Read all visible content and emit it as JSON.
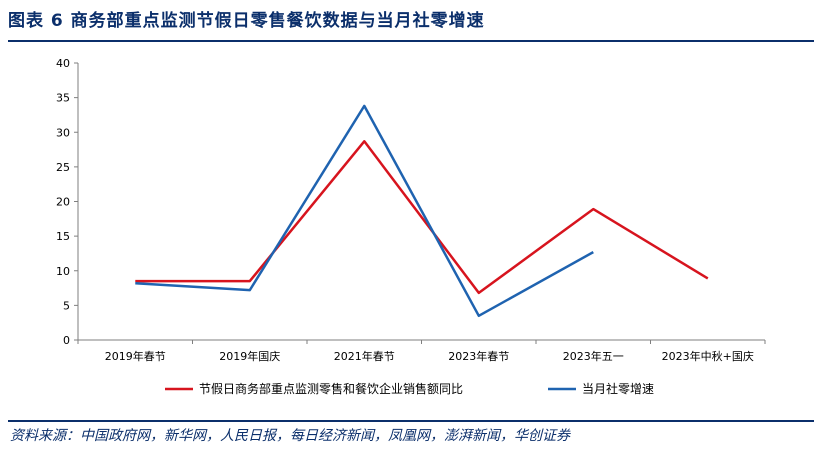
{
  "title": "图表 6  商务部重点监测节假日零售餐饮数据与当月社零增速",
  "source": "资料来源：中国政府网，新华网，人民日报，每日经济新闻，凤凰网，澎湃新闻，华创证券",
  "colors": {
    "series1": "#d7141e",
    "series2": "#1f63b0",
    "brand": "#0b2f6b"
  },
  "chart_data": {
    "type": "line",
    "categories": [
      "2019年春节",
      "2019年国庆",
      "2021年春节",
      "2023年春节",
      "2023年五一",
      "2023年中秋+国庆"
    ],
    "ylim": [
      0,
      40
    ],
    "yticks": [
      0,
      5,
      10,
      15,
      20,
      25,
      30,
      35,
      40
    ],
    "grid": false,
    "legend_position": "bottom",
    "series": [
      {
        "name": "节假日商务部重点监测零售和餐饮企业销售额同比",
        "color": "#d7141e",
        "values": [
          8.5,
          8.5,
          28.7,
          6.8,
          18.9,
          8.9
        ]
      },
      {
        "name": "当月社零增速",
        "color": "#1f63b0",
        "values": [
          8.2,
          7.2,
          33.8,
          3.5,
          12.7,
          null
        ]
      }
    ]
  }
}
